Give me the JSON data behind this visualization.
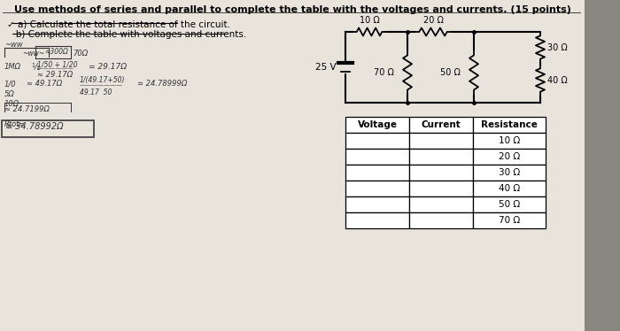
{
  "title": "Use methods of series and parallel to complete the table with the voltages and currents. (15 points)",
  "instr_a": "✓ a) Calculate the total resistance of the circuit.",
  "instr_b": "   b) Complete the table with voltages and currents.",
  "bg_color": "#c8c4bc",
  "paper_color": "#e8e4dc",
  "source_label": "25 V",
  "r1_label": "10 Ω",
  "r2_label": "20 Ω",
  "r3_label": "70 Ω",
  "r4_label": "50 Ω",
  "r5_label": "30 Ω",
  "r6_label": "40 Ω",
  "table_headers": [
    "Voltage",
    "Current",
    "Resistance"
  ],
  "table_rows": [
    "10 Ω",
    "20 Ω",
    "30 Ω",
    "40 Ω",
    "50 Ω",
    "70 Ω"
  ]
}
